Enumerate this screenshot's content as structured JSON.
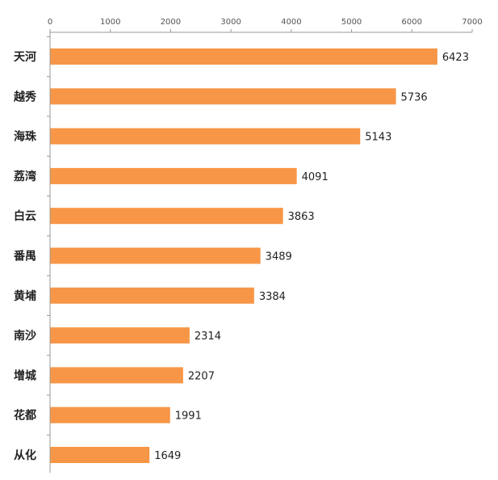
{
  "chart_data": {
    "type": "bar",
    "orientation": "horizontal",
    "categories": [
      "天河",
      "越秀",
      "海珠",
      "荔湾",
      "白云",
      "番禺",
      "黄埔",
      "南沙",
      "增城",
      "花都",
      "从化"
    ],
    "values": [
      6423,
      5736,
      5143,
      4091,
      3863,
      3489,
      3384,
      2314,
      2207,
      1991,
      1649
    ],
    "x_ticks": [
      "0",
      "1000",
      "2000",
      "3000",
      "4000",
      "5000",
      "6000",
      "7000"
    ],
    "xlim": [
      0,
      7000
    ],
    "x_axis_position": "top",
    "grid": false,
    "legend": "none",
    "bar_color": "#F79646"
  }
}
